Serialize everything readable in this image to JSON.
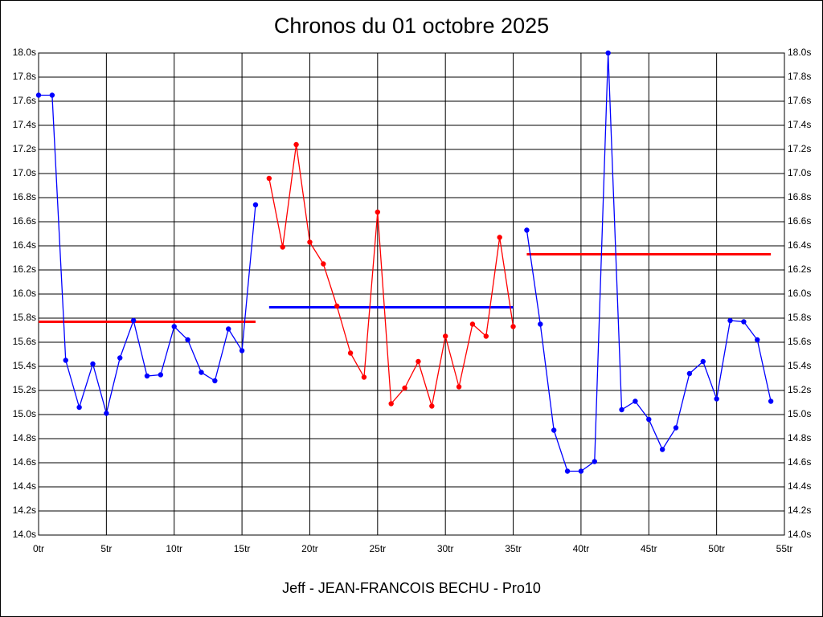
{
  "chart_data": {
    "type": "line",
    "title": "Chronos du 01 octobre 2025",
    "x_label": "Jeff - JEAN-FRANCOIS BECHU - Pro10",
    "xlim": [
      0,
      55
    ],
    "xticks": [
      {
        "value": 0,
        "label": "0tr"
      },
      {
        "value": 5,
        "label": "5tr"
      },
      {
        "value": 10,
        "label": "10tr"
      },
      {
        "value": 15,
        "label": "15tr"
      },
      {
        "value": 20,
        "label": "20tr"
      },
      {
        "value": 25,
        "label": "25tr"
      },
      {
        "value": 30,
        "label": "30tr"
      },
      {
        "value": 35,
        "label": "35tr"
      },
      {
        "value": 40,
        "label": "40tr"
      },
      {
        "value": 45,
        "label": "45tr"
      },
      {
        "value": 50,
        "label": "50tr"
      },
      {
        "value": 55,
        "label": "55tr"
      }
    ],
    "ylim": [
      14.0,
      18.0
    ],
    "yticks": [
      {
        "value": 14.0,
        "label": "14.0s"
      },
      {
        "value": 14.2,
        "label": "14.2s"
      },
      {
        "value": 14.4,
        "label": "14.4s"
      },
      {
        "value": 14.6,
        "label": "14.6s"
      },
      {
        "value": 14.8,
        "label": "14.8s"
      },
      {
        "value": 15.0,
        "label": "15.0s"
      },
      {
        "value": 15.2,
        "label": "15.2s"
      },
      {
        "value": 15.4,
        "label": "15.4s"
      },
      {
        "value": 15.6,
        "label": "15.6s"
      },
      {
        "value": 15.8,
        "label": "15.8s"
      },
      {
        "value": 16.0,
        "label": "16.0s"
      },
      {
        "value": 16.2,
        "label": "16.2s"
      },
      {
        "value": 16.4,
        "label": "16.4s"
      },
      {
        "value": 16.6,
        "label": "16.6s"
      },
      {
        "value": 16.8,
        "label": "16.8s"
      },
      {
        "value": 17.0,
        "label": "17.0s"
      },
      {
        "value": 17.2,
        "label": "17.2s"
      },
      {
        "value": 17.4,
        "label": "17.4s"
      },
      {
        "value": 17.6,
        "label": "17.6s"
      },
      {
        "value": 17.8,
        "label": "17.8s"
      },
      {
        "value": 18.0,
        "label": "18.0s"
      }
    ],
    "grid": true,
    "series": [
      {
        "color": "#0000ff",
        "x": [
          0,
          1,
          2,
          3,
          4,
          5,
          6,
          7,
          8,
          9,
          10,
          11,
          12,
          13,
          14,
          15,
          16
        ],
        "values": [
          17.65,
          17.65,
          15.45,
          15.06,
          15.42,
          15.01,
          15.47,
          15.78,
          15.32,
          15.33,
          15.73,
          15.62,
          15.35,
          15.28,
          15.71,
          15.53,
          16.74
        ]
      },
      {
        "color": "#ff0000",
        "x": [
          17,
          18,
          19,
          20,
          21,
          22,
          23,
          24,
          25,
          26,
          27,
          28,
          29,
          30,
          31,
          32,
          33,
          34,
          35
        ],
        "values": [
          16.96,
          16.39,
          17.24,
          16.43,
          16.25,
          15.9,
          15.51,
          15.31,
          16.68,
          15.09,
          15.22,
          15.44,
          15.07,
          15.65,
          15.23,
          15.75,
          15.65,
          16.47,
          15.73
        ]
      },
      {
        "color": "#0000ff",
        "x": [
          36,
          37,
          38,
          39,
          40,
          41,
          42,
          43,
          44,
          45,
          46,
          47,
          48,
          49,
          50,
          51,
          52,
          53,
          54
        ],
        "values": [
          16.53,
          15.75,
          14.87,
          14.53,
          14.53,
          14.61,
          18.0,
          15.04,
          15.11,
          14.96,
          14.71,
          14.89,
          15.34,
          15.44,
          15.13,
          15.78,
          15.77,
          15.62,
          15.11
        ]
      }
    ],
    "average_lines": [
      {
        "color": "#ff0000",
        "x": [
          0,
          16
        ],
        "value": 15.77
      },
      {
        "color": "#0000ff",
        "x": [
          17,
          35
        ],
        "value": 15.89
      },
      {
        "color": "#ff0000",
        "x": [
          36,
          54
        ],
        "value": 16.33
      }
    ]
  }
}
